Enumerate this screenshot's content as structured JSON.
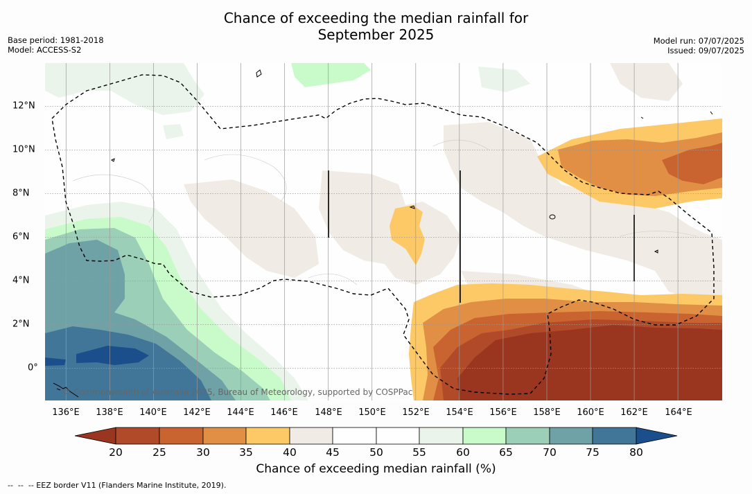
{
  "title": {
    "line1": "Chance of exceeding the median rainfall for",
    "line2": "September 2025"
  },
  "meta": {
    "base_period": "Base period: 1981-2018",
    "model": "Model: ACCESS-S2",
    "model_run": "Model run: 07/07/2025",
    "issued": "Issued: 09/07/2025"
  },
  "map": {
    "lon_range": [
      135,
      166
    ],
    "lat_range": [
      -1.5,
      14
    ],
    "lon_ticks": [
      "136°E",
      "138°E",
      "140°E",
      "142°E",
      "144°E",
      "146°E",
      "148°E",
      "150°E",
      "152°E",
      "154°E",
      "156°E",
      "158°E",
      "160°E",
      "162°E",
      "164°E"
    ],
    "lat_ticks": [
      "12°N",
      "10°N",
      "8°N",
      "6°N",
      "4°N",
      "2°N",
      "0°"
    ],
    "credit": "© Commonwealth of Australia 2025, Bureau of Meteorology, supported by COSPPac",
    "colors": {
      "lt20": "#9a3520",
      "c20_25": "#b14a28",
      "c25_30": "#c96330",
      "c30_35": "#e08f45",
      "c35_40": "#fdc966",
      "c40_45": "#f1ebe6",
      "c45_55": "#fdfefd",
      "c55_60": "#ebf4eb",
      "c60_65": "#c9fbca",
      "c65_70": "#9bcfb8",
      "c70_75": "#6ea2a6",
      "c75_80": "#427698",
      "gt80": "#1a4f8c"
    }
  },
  "colorbar": {
    "ticks": [
      "20",
      "25",
      "30",
      "35",
      "40",
      "45",
      "50",
      "55",
      "60",
      "65",
      "70",
      "75",
      "80"
    ],
    "label": "Chance of exceeding median rainfall (%)"
  },
  "footnote": "--  --  -- EEZ border V11 (Flanders Marine Institute, 2019)."
}
